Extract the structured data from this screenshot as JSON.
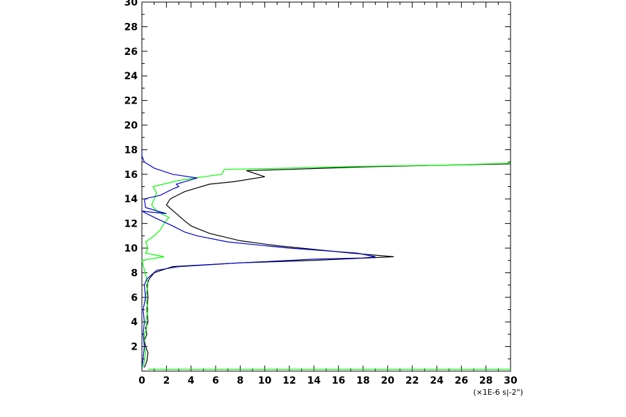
{
  "chart_data": {
    "type": "line",
    "title": "",
    "xlabel": "",
    "ylabel": "",
    "x_unit_label": "(×1E-6 s|-2\")",
    "xlim": [
      0,
      30
    ],
    "ylim": [
      0,
      30
    ],
    "x_major_ticks": [
      0,
      2,
      4,
      6,
      8,
      10,
      12,
      14,
      16,
      18,
      20,
      22,
      24,
      26,
      28,
      30
    ],
    "y_major_ticks": [
      2,
      4,
      6,
      8,
      10,
      12,
      14,
      16,
      18,
      20,
      22,
      24,
      26,
      28,
      30
    ],
    "grid": false,
    "series": [
      {
        "color": "#000000",
        "points": [
          [
            0.2,
            0.3
          ],
          [
            0.4,
            0.8
          ],
          [
            0.5,
            1.5
          ],
          [
            0.3,
            2.0
          ],
          [
            0.2,
            2.5
          ],
          [
            0.4,
            3.0
          ],
          [
            0.3,
            3.5
          ],
          [
            0.5,
            4.0
          ],
          [
            0.4,
            5.0
          ],
          [
            0.5,
            6.0
          ],
          [
            0.4,
            7.0
          ],
          [
            0.6,
            7.5
          ],
          [
            1.0,
            8.0
          ],
          [
            2.5,
            8.5
          ],
          [
            8.0,
            8.8
          ],
          [
            14.0,
            9.0
          ],
          [
            20.5,
            9.3
          ],
          [
            17.0,
            9.6
          ],
          [
            11.0,
            10.2
          ],
          [
            8.0,
            10.6
          ],
          [
            5.5,
            11.2
          ],
          [
            4.0,
            11.8
          ],
          [
            3.5,
            12.2
          ],
          [
            2.8,
            12.8
          ],
          [
            2.0,
            13.5
          ],
          [
            2.3,
            14.0
          ],
          [
            3.5,
            14.6
          ],
          [
            5.5,
            15.2
          ],
          [
            7.5,
            15.4
          ],
          [
            10.0,
            15.8
          ],
          [
            8.5,
            16.3
          ],
          [
            12.0,
            16.4
          ],
          [
            18.0,
            16.6
          ],
          [
            25.0,
            16.75
          ],
          [
            30.0,
            16.85
          ]
        ]
      },
      {
        "color": "#00ff00",
        "points": [
          [
            0.1,
            0.3
          ],
          [
            0.2,
            0.8
          ],
          [
            0.3,
            1.5
          ],
          [
            0.2,
            2.0
          ],
          [
            0.2,
            3.0
          ],
          [
            0.4,
            3.5
          ],
          [
            0.3,
            4.0
          ],
          [
            0.5,
            5.0
          ],
          [
            0.3,
            6.0
          ],
          [
            0.5,
            7.0
          ],
          [
            0.4,
            7.5
          ],
          [
            0.0,
            9.0
          ],
          [
            1.8,
            9.3
          ],
          [
            0.3,
            9.6
          ],
          [
            0.5,
            10.0
          ],
          [
            0.3,
            10.5
          ],
          [
            1.0,
            11.0
          ],
          [
            1.5,
            11.5
          ],
          [
            1.8,
            12.0
          ],
          [
            2.2,
            12.5
          ],
          [
            1.2,
            13.0
          ],
          [
            0.8,
            13.5
          ],
          [
            1.0,
            14.0
          ],
          [
            1.2,
            14.5
          ],
          [
            0.9,
            15.0
          ],
          [
            3.0,
            15.5
          ],
          [
            5.0,
            15.8
          ],
          [
            6.5,
            16.0
          ],
          [
            6.7,
            16.4
          ],
          [
            12.0,
            16.5
          ],
          [
            18.0,
            16.65
          ],
          [
            25.0,
            16.75
          ],
          [
            30.0,
            16.9
          ]
        ]
      },
      {
        "color": "#0000cc",
        "points": [
          [
            0.0,
            0.3
          ],
          [
            0.1,
            1.0
          ],
          [
            0.2,
            2.0
          ],
          [
            0.1,
            3.0
          ],
          [
            0.2,
            4.0
          ],
          [
            0.1,
            5.0
          ],
          [
            0.3,
            6.0
          ],
          [
            0.2,
            7.0
          ],
          [
            0.4,
            7.5
          ],
          [
            1.2,
            8.2
          ],
          [
            3.0,
            8.5
          ],
          [
            8.0,
            8.8
          ],
          [
            14.0,
            9.1
          ],
          [
            18.0,
            9.2
          ],
          [
            19.0,
            9.3
          ],
          [
            17.5,
            9.6
          ],
          [
            12.0,
            10.0
          ],
          [
            7.0,
            10.5
          ],
          [
            4.5,
            11.0
          ],
          [
            3.5,
            11.3
          ],
          [
            2.5,
            11.8
          ],
          [
            1.0,
            12.5
          ],
          [
            0.0,
            13.0
          ],
          [
            2.0,
            12.8
          ],
          [
            0.3,
            13.3
          ],
          [
            0.2,
            14.0
          ],
          [
            1.5,
            14.3
          ],
          [
            2.5,
            14.8
          ],
          [
            3.0,
            15.0
          ],
          [
            2.8,
            15.2
          ],
          [
            4.5,
            15.7
          ],
          [
            2.5,
            16.0
          ],
          [
            1.0,
            16.5
          ],
          [
            0.2,
            17.0
          ],
          [
            0.0,
            17.5
          ],
          [
            0.0,
            18.0
          ]
        ]
      }
    ],
    "baseline": {
      "color": "#00ff00",
      "points": [
        [
          0.5,
          0.15
        ],
        [
          30.0,
          0.15
        ]
      ]
    }
  }
}
